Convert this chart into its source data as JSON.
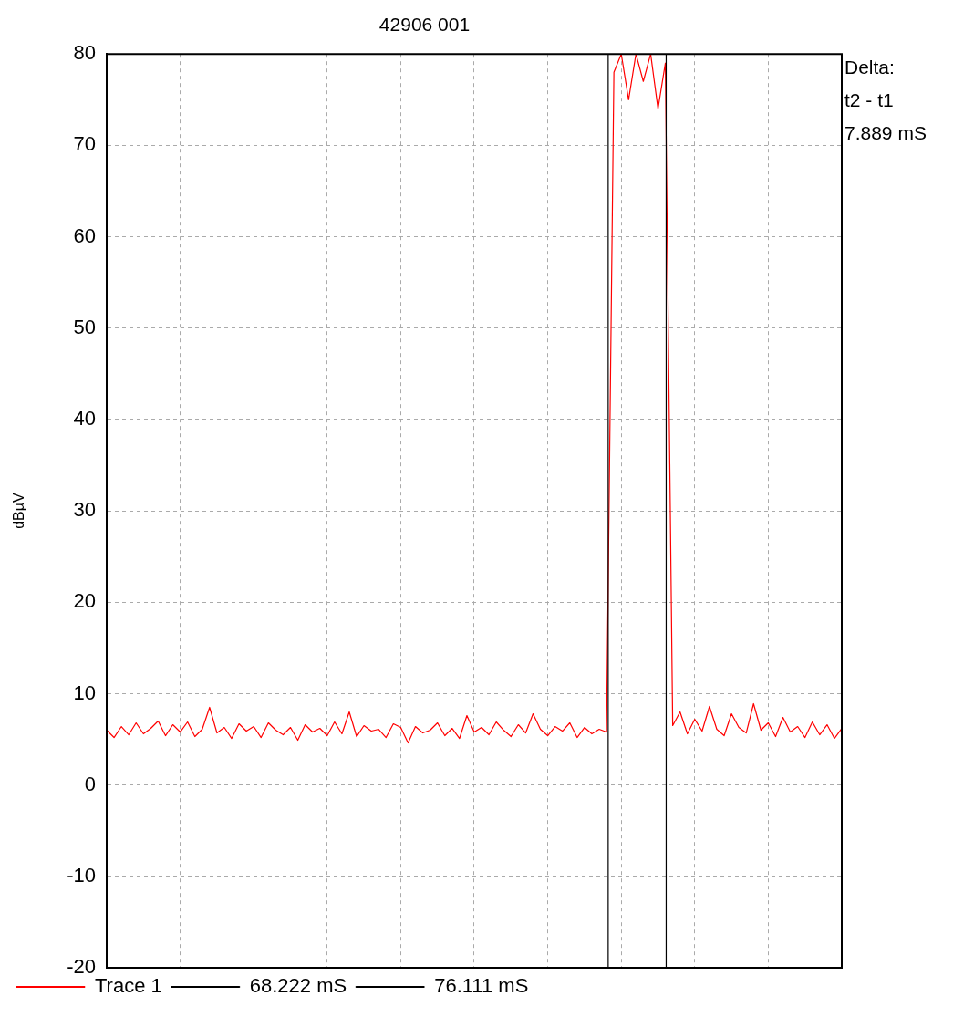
{
  "chart_data": {
    "type": "line",
    "title": "42906 001",
    "ylabel": "dBµV",
    "categories": [
      null,
      null,
      null,
      null,
      null,
      null,
      null,
      null,
      null,
      null,
      null,
      null,
      null,
      null,
      null,
      null,
      null,
      null,
      null,
      null,
      null,
      null,
      null,
      null,
      null,
      null,
      null,
      null,
      null,
      null,
      null,
      null,
      null,
      null,
      null,
      null,
      null,
      null,
      null,
      null,
      null,
      null,
      null,
      null,
      null,
      null,
      null,
      null,
      null,
      null,
      null,
      null,
      null,
      null,
      null,
      null,
      null,
      null,
      null,
      null,
      null,
      null,
      null,
      null,
      null,
      null,
      null,
      null,
      null,
      null,
      null,
      null,
      null,
      null,
      null,
      null,
      null,
      null,
      null,
      null,
      null,
      null,
      null,
      null,
      null,
      null,
      null,
      null,
      null,
      null,
      null,
      null,
      null,
      null,
      null,
      null,
      null,
      null,
      null,
      null,
      null
    ],
    "series": [
      {
        "name": "Trace 1",
        "color": "#ff0000",
        "values": [
          6,
          5.2,
          6.4,
          5.5,
          6.8,
          5.6,
          6.2,
          7,
          5.4,
          6.6,
          5.8,
          6.9,
          5.3,
          6.1,
          8.5,
          5.7,
          6.3,
          5.1,
          6.7,
          5.9,
          6.4,
          5.2,
          6.8,
          6,
          5.5,
          6.3,
          4.9,
          6.6,
          5.8,
          6.2,
          5.4,
          6.9,
          5.6,
          8,
          5.3,
          6.5,
          5.9,
          6.1,
          5.2,
          6.7,
          6.3,
          4.6,
          6.4,
          5.7,
          6,
          6.8,
          5.4,
          6.2,
          5.1,
          7.6,
          5.8,
          6.3,
          5.5,
          6.9,
          6,
          5.3,
          6.6,
          5.7,
          7.8,
          6.1,
          5.4,
          6.4,
          5.9,
          6.8,
          5.2,
          6.3,
          5.6,
          6.1,
          5.8,
          78,
          80,
          75,
          80,
          77,
          80,
          74,
          79,
          6.5,
          8,
          5.6,
          7.2,
          5.9,
          8.6,
          6.1,
          5.4,
          7.8,
          6.3,
          5.7,
          8.9,
          6,
          6.8,
          5.3,
          7.4,
          5.8,
          6.4,
          5.2,
          6.9,
          5.5,
          6.6,
          5.1,
          6.2
        ]
      }
    ],
    "ylim": [
      -20,
      80
    ],
    "yticks": [
      -20,
      -10,
      0,
      10,
      20,
      30,
      40,
      50,
      60,
      70,
      80
    ],
    "tick_labels": "y",
    "grid": true,
    "legend": "bottom",
    "marker": "none",
    "line_style": "solid",
    "annotations": [
      "Delta:",
      "t2 - t1",
      "7.889 mS",
      "68.222 mS",
      "76.111 mS"
    ]
  }
}
